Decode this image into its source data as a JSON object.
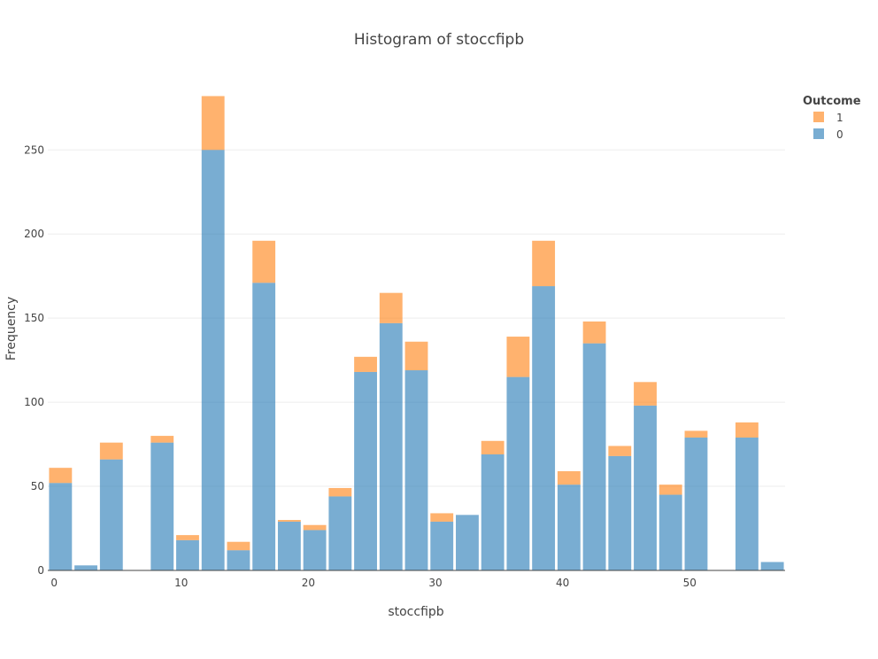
{
  "chart_data": {
    "type": "bar",
    "stacked": true,
    "title": "Histogram of stoccfipb",
    "xlabel": "stoccfipb",
    "ylabel": "Frequency",
    "xlim": [
      -0.5,
      57.5
    ],
    "ylim": [
      0,
      297
    ],
    "x_ticks": [
      0,
      10,
      20,
      30,
      40,
      50
    ],
    "y_ticks": [
      0,
      50,
      100,
      150,
      200,
      250
    ],
    "bin_width": 2,
    "bin_centers": [
      0.5,
      2.5,
      4.5,
      6.5,
      8.5,
      10.5,
      12.5,
      14.5,
      16.5,
      18.5,
      20.5,
      22.5,
      24.5,
      26.5,
      28.5,
      30.5,
      32.5,
      34.5,
      36.5,
      38.5,
      40.5,
      42.5,
      44.5,
      46.5,
      48.5,
      50.5,
      52.5,
      54.5,
      56.5
    ],
    "legend_title": "Outcome",
    "legend_position": "top-right",
    "grid": true,
    "series": [
      {
        "name": "0",
        "color": "#1f77b4",
        "values": [
          52,
          3,
          66,
          0,
          76,
          18,
          250,
          12,
          171,
          29,
          24,
          44,
          118,
          147,
          119,
          29,
          33,
          69,
          115,
          169,
          51,
          135,
          68,
          98,
          45,
          79,
          0,
          79,
          5
        ]
      },
      {
        "name": "1",
        "color": "#ff7f0e",
        "values": [
          9,
          0,
          10,
          0,
          4,
          3,
          32,
          5,
          25,
          1,
          3,
          5,
          9,
          18,
          17,
          5,
          0,
          8,
          24,
          27,
          8,
          13,
          6,
          14,
          6,
          4,
          0,
          9,
          0
        ]
      }
    ]
  }
}
